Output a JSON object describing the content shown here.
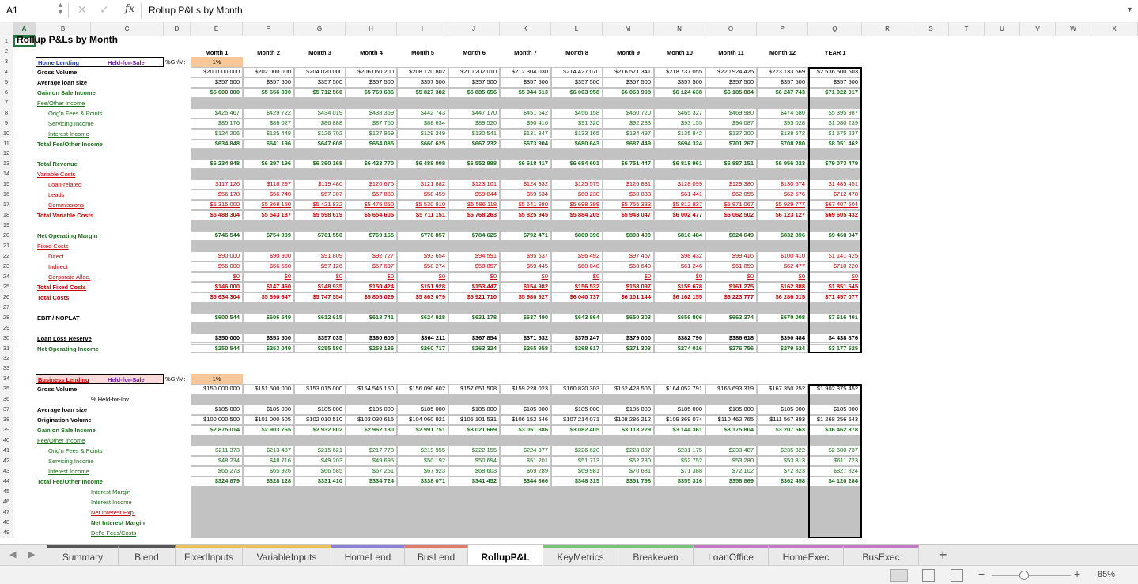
{
  "formula_bar": {
    "cell_ref": "A1",
    "formula": "Rollup P&Ls by Month"
  },
  "columns": [
    "A",
    "B",
    "C",
    "D",
    "E",
    "F",
    "G",
    "H",
    "I",
    "J",
    "K",
    "L",
    "M",
    "N",
    "O",
    "P",
    "Q",
    "R",
    "S",
    "T",
    "U",
    "V",
    "W",
    "X"
  ],
  "title": "Rollup P&Ls by Month",
  "months": [
    "Month 1",
    "Month 2",
    "Month 3",
    "Month 4",
    "Month 5",
    "Month 6",
    "Month 7",
    "Month 8",
    "Month 9",
    "Month 10",
    "Month 11",
    "Month 12",
    "YEAR 1"
  ],
  "home": {
    "section": "Home Lending",
    "type": "Held-for-Sale",
    "gr_label": "%Gr/M:",
    "gr_value": "1%",
    "rows": [
      {
        "r": 4,
        "label": "Gross Volume",
        "cls": "b",
        "vals": [
          "$200 000 000",
          "$202 000 000",
          "$204 020 000",
          "$206 060 200",
          "$208 120 802",
          "$210 202 010",
          "$212 304 030",
          "$214 427 070",
          "$216 571 341",
          "$218 737 055",
          "$220 924 425",
          "$223 133 669",
          "$2 536 500 603"
        ],
        "vc": "k"
      },
      {
        "r": 5,
        "label": "Average loan size",
        "cls": "b",
        "vals": [
          "$357 500",
          "$357 500",
          "$357 500",
          "$357 500",
          "$357 500",
          "$357 500",
          "$357 500",
          "$357 500",
          "$357 500",
          "$357 500",
          "$357 500",
          "$357 500",
          "$357 500"
        ],
        "vc": "k"
      },
      {
        "r": 6,
        "label": "Gain on Sale Income",
        "cls": "bg",
        "vals": [
          "$5 600 000",
          "$5 656 000",
          "$5 712 560",
          "$5 769 686",
          "$5 827 382",
          "$5 885 656",
          "$5 944 513",
          "$6 003 958",
          "$6 063 998",
          "$6 124 638",
          "$6 185 884",
          "$6 247 743",
          "$71 022 017"
        ],
        "vc": "gb"
      },
      {
        "r": 7,
        "label": "Fee/Other Income",
        "cls": "gu"
      },
      {
        "r": 8,
        "label": "Orig'n Fees & Points",
        "cls": "gi",
        "vals": [
          "$425 467",
          "$429 722",
          "$434 019",
          "$438 359",
          "$442 743",
          "$447 170",
          "$451 642",
          "$456 158",
          "$460 720",
          "$465 327",
          "$469 980",
          "$474 680",
          "$5 395 987"
        ],
        "vc": "g"
      },
      {
        "r": 9,
        "label": "Servicing Income",
        "cls": "gi",
        "vals": [
          "$85 176",
          "$86 027",
          "$86 888",
          "$87 756",
          "$88 634",
          "$89 520",
          "$90 416",
          "$91 320",
          "$92 233",
          "$93 155",
          "$94 087",
          "$95 028",
          "$1 080 239"
        ],
        "vc": "g"
      },
      {
        "r": 10,
        "label": "Interest Income",
        "cls": "giu",
        "vals": [
          "$124 206",
          "$125 448",
          "$126 702",
          "$127 969",
          "$129 249",
          "$130 541",
          "$131 847",
          "$133 165",
          "$134 497",
          "$135 842",
          "$137 200",
          "$138 572",
          "$1 575 237"
        ],
        "vc": "g"
      },
      {
        "r": 11,
        "label": "Total Fee/Other Income",
        "cls": "bg",
        "vals": [
          "$634 848",
          "$641 196",
          "$647 608",
          "$654 085",
          "$660 625",
          "$667 232",
          "$673 904",
          "$680 643",
          "$687 449",
          "$694 324",
          "$701 267",
          "$708 280",
          "$8 051 462"
        ],
        "vc": "gb"
      },
      {
        "r": 13,
        "label": "Total Revenue",
        "cls": "bg",
        "vals": [
          "$6 234 848",
          "$6 297 196",
          "$6 360 168",
          "$6 423 770",
          "$6 488 008",
          "$6 552 888",
          "$6 618 417",
          "$6 684 601",
          "$6 751 447",
          "$6 818 961",
          "$6 887 151",
          "$6 956 023",
          "$79 073 479"
        ],
        "vc": "gb"
      },
      {
        "r": 14,
        "label": "Variable Costs",
        "cls": "ru"
      },
      {
        "r": 15,
        "label": "Loan-related",
        "cls": "ri",
        "vals": [
          "$117 126",
          "$118 297",
          "$119 480",
          "$120 675",
          "$121 882",
          "$123 101",
          "$124 332",
          "$125 575",
          "$126 831",
          "$128 099",
          "$129 380",
          "$130 674",
          "$1 485 451"
        ],
        "vc": "r"
      },
      {
        "r": 16,
        "label": "Leads",
        "cls": "ri",
        "vals": [
          "$56 178",
          "$56 740",
          "$57 307",
          "$57 880",
          "$58 459",
          "$59 044",
          "$59 634",
          "$60 230",
          "$60 833",
          "$61 441",
          "$62 055",
          "$62 676",
          "$712 478"
        ],
        "vc": "r"
      },
      {
        "r": 17,
        "label": "Commissions",
        "cls": "riu",
        "vals": [
          "$5 315 000",
          "$5 368 150",
          "$5 421 832",
          "$5 476 050",
          "$5 530 810",
          "$5 586 118",
          "$5 641 980",
          "$5 698 399",
          "$5 755 383",
          "$5 812 937",
          "$5 871 067",
          "$5 929 777",
          "$67 407 504"
        ],
        "vc": "ru"
      },
      {
        "r": 18,
        "label": "Total Variable Costs",
        "cls": "br",
        "vals": [
          "$5 488 304",
          "$5 543 187",
          "$5 598 619",
          "$5 654 605",
          "$5 711 151",
          "$5 768 263",
          "$5 825 945",
          "$5 884 205",
          "$5 943 047",
          "$6 002 477",
          "$6 062 502",
          "$6 123 127",
          "$69 605 432"
        ],
        "vc": "rb"
      },
      {
        "r": 20,
        "label": "Net Operating Margin",
        "cls": "bg",
        "vals": [
          "$746 544",
          "$754 009",
          "$761 550",
          "$769 165",
          "$776 857",
          "$784 625",
          "$792 471",
          "$800 396",
          "$808 400",
          "$816 484",
          "$824 649",
          "$832 896",
          "$9 468 047"
        ],
        "vc": "gb"
      },
      {
        "r": 21,
        "label": "Fixed Costs",
        "cls": "ru"
      },
      {
        "r": 22,
        "label": "Direct",
        "cls": "ri",
        "vals": [
          "$90 000",
          "$90 900",
          "$91 809",
          "$92 727",
          "$93 654",
          "$94 591",
          "$95 537",
          "$96 492",
          "$97 457",
          "$98 432",
          "$99 416",
          "$100 410",
          "$1 141 425"
        ],
        "vc": "r"
      },
      {
        "r": 23,
        "label": "Indirect",
        "cls": "ri",
        "vals": [
          "$56 000",
          "$56 560",
          "$57 126",
          "$57 697",
          "$58 274",
          "$58 857",
          "$59 445",
          "$60 040",
          "$60 640",
          "$61 246",
          "$61 859",
          "$62 477",
          "$710 220"
        ],
        "vc": "r"
      },
      {
        "r": 24,
        "label": "Corporate Alloc.",
        "cls": "riu",
        "vals": [
          "$0",
          "$0",
          "$0",
          "$0",
          "$0",
          "$0",
          "$0",
          "$0",
          "$0",
          "$0",
          "$0",
          "$0",
          "$0"
        ],
        "vc": "ru"
      },
      {
        "r": 25,
        "label": "Total Fixed Costs",
        "cls": "bru",
        "vals": [
          "$146 000",
          "$147 460",
          "$148 935",
          "$150 424",
          "$151 928",
          "$153 447",
          "$154 982",
          "$156 532",
          "$158 097",
          "$159 678",
          "$161 275",
          "$162 888",
          "$1 851 645"
        ],
        "vc": "rbu"
      },
      {
        "r": 26,
        "label": "Total Costs",
        "cls": "br",
        "vals": [
          "$5 634 304",
          "$5 690 647",
          "$5 747 554",
          "$5 805 029",
          "$5 863 079",
          "$5 921 710",
          "$5 980 927",
          "$6 040 737",
          "$6 101 144",
          "$6 162 155",
          "$6 223 777",
          "$6 286 015",
          "$71 457 077"
        ],
        "vc": "rb"
      },
      {
        "r": 28,
        "label": "EBIT / NOPLAT",
        "cls": "bk",
        "vals": [
          "$600 544",
          "$606 549",
          "$612 615",
          "$618 741",
          "$624 928",
          "$631 178",
          "$637 490",
          "$643 864",
          "$650 303",
          "$656 806",
          "$663 374",
          "$670 008",
          "$7 616 401"
        ],
        "vc": "gb"
      },
      {
        "r": 30,
        "label": "Loan Loss Reserve",
        "cls": "bku",
        "vals": [
          "$350 000",
          "$353 500",
          "$357 035",
          "$360 605",
          "$364 211",
          "$367 854",
          "$371 532",
          "$375 247",
          "$379 000",
          "$382 790",
          "$386 618",
          "$390 484",
          "$4 438 876"
        ],
        "vc": "kbu"
      },
      {
        "r": 31,
        "label": "Net Operating Income",
        "cls": "bg",
        "vals": [
          "$250 544",
          "$253 049",
          "$255 580",
          "$258 136",
          "$260 717",
          "$263 324",
          "$265 958",
          "$268 617",
          "$271 303",
          "$274 016",
          "$276 756",
          "$279 524",
          "$3 177 525"
        ],
        "vc": "gb"
      }
    ]
  },
  "bus": {
    "section": "Business Lending",
    "type": "Held-for-Sale",
    "gr_label": "%Gr/M:",
    "gr_value": "1%",
    "held_for_inv": "% Held-for-Inv.",
    "rows": [
      {
        "r": 35,
        "label": "Gross Volume",
        "cls": "b",
        "vals": [
          "$150 000 000",
          "$151 500 000",
          "$153 015 000",
          "$154 545 150",
          "$156 090 602",
          "$157 651 508",
          "$159 228 023",
          "$160 820 303",
          "$162 428 506",
          "$164 052 791",
          "$165 693 319",
          "$167 350 252",
          "$1 902 375 452"
        ],
        "vc": "k"
      },
      {
        "r": 37,
        "label": "Average loan size",
        "cls": "b",
        "vals": [
          "$185 000",
          "$185 000",
          "$185 000",
          "$185 000",
          "$185 000",
          "$185 000",
          "$185 000",
          "$185 000",
          "$185 000",
          "$185 000",
          "$185 000",
          "$185 000",
          "$185 000"
        ],
        "vc": "k"
      },
      {
        "r": 38,
        "label": "Origination Volume",
        "cls": "b",
        "vals": [
          "$100 000 500",
          "$101 000 505",
          "$102 010 510",
          "$103 030 615",
          "$104 060 921",
          "$105 101 531",
          "$106 152 546",
          "$107 214 071",
          "$108 286 212",
          "$109 369 074",
          "$110 462 765",
          "$111 567 393",
          "$1 268 256 643"
        ],
        "vc": "k"
      },
      {
        "r": 39,
        "label": "Gain on Sale Income",
        "cls": "bg",
        "vals": [
          "$2 875 014",
          "$2 903 765",
          "$2 932 802",
          "$2 962 130",
          "$2 991 751",
          "$3 021 669",
          "$3 051 886",
          "$3 082 405",
          "$3 113 229",
          "$3 144 361",
          "$3 175 804",
          "$3 207 563",
          "$36 462 378"
        ],
        "vc": "gb"
      },
      {
        "r": 40,
        "label": "Fee/Other Income",
        "cls": "gu"
      },
      {
        "r": 41,
        "label": "Orig'n Fees & Points",
        "cls": "gi",
        "vals": [
          "$211 373",
          "$213 487",
          "$215 621",
          "$217 778",
          "$219 955",
          "$222 155",
          "$224 377",
          "$226 620",
          "$228 887",
          "$231 175",
          "$233 487",
          "$235 822",
          "$2 680 737"
        ],
        "vc": "g"
      },
      {
        "r": 42,
        "label": "Servicing Income",
        "cls": "gi",
        "vals": [
          "$48 234",
          "$48 716",
          "$49 203",
          "$49 695",
          "$50 192",
          "$50 694",
          "$51 201",
          "$51 713",
          "$52 230",
          "$52 752",
          "$53 280",
          "$53 813",
          "$611 723"
        ],
        "vc": "g"
      },
      {
        "r": 43,
        "label": "Interest Income",
        "cls": "giu",
        "vals": [
          "$65 273",
          "$65 926",
          "$66 585",
          "$67 251",
          "$67 923",
          "$68 603",
          "$69 289",
          "$69 981",
          "$70 681",
          "$71 388",
          "$72 102",
          "$72 823",
          "$827 824"
        ],
        "vc": "g"
      },
      {
        "r": 44,
        "label": "Total Fee/Other Income",
        "cls": "bg",
        "vals": [
          "$324 879",
          "$328 128",
          "$331 410",
          "$334 724",
          "$338 071",
          "$341 452",
          "$344 866",
          "$348 315",
          "$351 798",
          "$355 316",
          "$358 869",
          "$362 458",
          "$4 120 284"
        ],
        "vc": "gb"
      }
    ],
    "interest": [
      {
        "r": 45,
        "label": "Interest Margin",
        "c": "#1a6e1a",
        "u": true
      },
      {
        "r": 46,
        "label": "Interest Income",
        "c": "#1a6e1a",
        "u": false
      },
      {
        "r": 47,
        "label": "Net Interest Exp.",
        "c": "#cc0000",
        "u": true
      },
      {
        "r": 48,
        "label": "Net Interest Margin",
        "c": "#1a6e1a",
        "u": false,
        "b": true
      },
      {
        "r": 49,
        "label": "Def'd Fees/Costs",
        "c": "#1a6e1a",
        "u": true
      }
    ]
  },
  "tabs": [
    {
      "label": "Summary",
      "color": "#555555"
    },
    {
      "label": "Blend",
      "color": "#555555"
    },
    {
      "label": "FixedInputs",
      "color": "#e8c15a"
    },
    {
      "label": "VariableInputs",
      "color": "#e8c15a"
    },
    {
      "label": "HomeLend",
      "color": "#8c7fd6"
    },
    {
      "label": "BusLend",
      "color": "#e07a6e"
    },
    {
      "label": "RollupP&L",
      "color": "#ffffff",
      "active": true
    },
    {
      "label": "KeyMetrics",
      "color": "#7bc27b"
    },
    {
      "label": "Breakeven",
      "color": "#7bc27b"
    },
    {
      "label": "LoanOffice",
      "color": "#c27bc2"
    },
    {
      "label": "HomeExec",
      "color": "#c27bc2"
    },
    {
      "label": "BusExec",
      "color": "#c27bc2"
    }
  ],
  "zoom": "85%",
  "add_sheet": "+"
}
